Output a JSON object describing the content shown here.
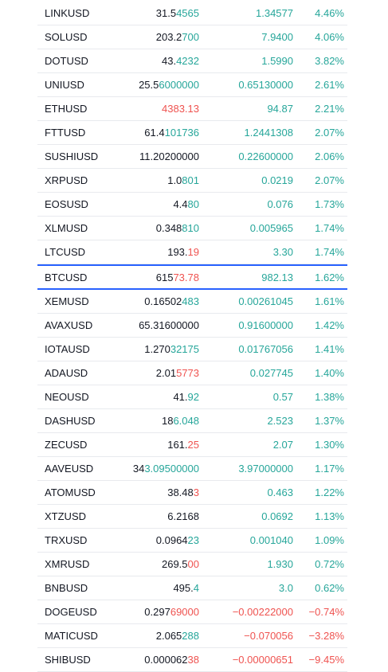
{
  "colors": {
    "up": "#26a69a",
    "down": "#ef5350",
    "text": "#131722",
    "highlight_border": "#2962ff"
  },
  "rows": [
    {
      "symbol": "LINKUSD",
      "last_base": "31.5",
      "last_tail": "4565",
      "last_dir": "up",
      "change": "1.34577",
      "change_dir": "up",
      "percent": "4.46%",
      "highlight": false
    },
    {
      "symbol": "SOLUSD",
      "last_base": "203.2",
      "last_tail": "700",
      "last_dir": "up",
      "change": "7.9400",
      "change_dir": "up",
      "percent": "4.06%",
      "highlight": false
    },
    {
      "symbol": "DOTUSD",
      "last_base": "43.",
      "last_tail": "4232",
      "last_dir": "up",
      "change": "1.5990",
      "change_dir": "up",
      "percent": "3.82%",
      "highlight": false
    },
    {
      "symbol": "UNIUSD",
      "last_base": "25.5",
      "last_tail": "6000000",
      "last_dir": "up",
      "change": "0.65130000",
      "change_dir": "up",
      "percent": "2.61%",
      "highlight": false
    },
    {
      "symbol": "ETHUSD",
      "last_base": "",
      "last_tail": "4383.13",
      "last_dir": "down",
      "change": "94.87",
      "change_dir": "up",
      "percent": "2.21%",
      "highlight": false
    },
    {
      "symbol": "FTTUSD",
      "last_base": "61.4",
      "last_tail": "101736",
      "last_dir": "up",
      "change": "1.2441308",
      "change_dir": "up",
      "percent": "2.07%",
      "highlight": false
    },
    {
      "symbol": "SUSHIUSD",
      "last_base": "11.20200000",
      "last_tail": "",
      "last_dir": "up",
      "change": "0.22600000",
      "change_dir": "up",
      "percent": "2.06%",
      "highlight": false
    },
    {
      "symbol": "XRPUSD",
      "last_base": "1.0",
      "last_tail": "801",
      "last_dir": "up",
      "change": "0.0219",
      "change_dir": "up",
      "percent": "2.07%",
      "highlight": false
    },
    {
      "symbol": "EOSUSD",
      "last_base": "4.4",
      "last_tail": "80",
      "last_dir": "up",
      "change": "0.076",
      "change_dir": "up",
      "percent": "1.73%",
      "highlight": false
    },
    {
      "symbol": "XLMUSD",
      "last_base": "0.348",
      "last_tail": "810",
      "last_dir": "up",
      "change": "0.005965",
      "change_dir": "up",
      "percent": "1.74%",
      "highlight": false
    },
    {
      "symbol": "LTCUSD",
      "last_base": "193.",
      "last_tail": "19",
      "last_dir": "down",
      "change": "3.30",
      "change_dir": "up",
      "percent": "1.74%",
      "highlight": false
    },
    {
      "symbol": "BTCUSD",
      "last_base": "615",
      "last_tail": "73.78",
      "last_dir": "down",
      "change": "982.13",
      "change_dir": "up",
      "percent": "1.62%",
      "highlight": true
    },
    {
      "symbol": "XEMUSD",
      "last_base": "0.16502",
      "last_tail": "483",
      "last_dir": "up",
      "change": "0.00261045",
      "change_dir": "up",
      "percent": "1.61%",
      "highlight": false
    },
    {
      "symbol": "AVAXUSD",
      "last_base": "65.31600000",
      "last_tail": "",
      "last_dir": "up",
      "change": "0.91600000",
      "change_dir": "up",
      "percent": "1.42%",
      "highlight": false
    },
    {
      "symbol": "IOTAUSD",
      "last_base": "1.270",
      "last_tail": "32175",
      "last_dir": "up",
      "change": "0.01767056",
      "change_dir": "up",
      "percent": "1.41%",
      "highlight": false
    },
    {
      "symbol": "ADAUSD",
      "last_base": "2.01",
      "last_tail": "5773",
      "last_dir": "down",
      "change": "0.027745",
      "change_dir": "up",
      "percent": "1.40%",
      "highlight": false
    },
    {
      "symbol": "NEOUSD",
      "last_base": "41.",
      "last_tail": "92",
      "last_dir": "up",
      "change": "0.57",
      "change_dir": "up",
      "percent": "1.38%",
      "highlight": false
    },
    {
      "symbol": "DASHUSD",
      "last_base": "18",
      "last_tail": "6.048",
      "last_dir": "up",
      "change": "2.523",
      "change_dir": "up",
      "percent": "1.37%",
      "highlight": false
    },
    {
      "symbol": "ZECUSD",
      "last_base": "161.",
      "last_tail": "25",
      "last_dir": "down",
      "change": "2.07",
      "change_dir": "up",
      "percent": "1.30%",
      "highlight": false
    },
    {
      "symbol": "AAVEUSD",
      "last_base": "34",
      "last_tail": "3.09500000",
      "last_dir": "up",
      "change": "3.97000000",
      "change_dir": "up",
      "percent": "1.17%",
      "highlight": false
    },
    {
      "symbol": "ATOMUSD",
      "last_base": "38.48",
      "last_tail": "3",
      "last_dir": "down",
      "change": "0.463",
      "change_dir": "up",
      "percent": "1.22%",
      "highlight": false
    },
    {
      "symbol": "XTZUSD",
      "last_base": "6.2168",
      "last_tail": "",
      "last_dir": "up",
      "change": "0.0692",
      "change_dir": "up",
      "percent": "1.13%",
      "highlight": false
    },
    {
      "symbol": "TRXUSD",
      "last_base": "0.0964",
      "last_tail": "23",
      "last_dir": "up",
      "change": "0.001040",
      "change_dir": "up",
      "percent": "1.09%",
      "highlight": false
    },
    {
      "symbol": "XMRUSD",
      "last_base": "269.5",
      "last_tail": "00",
      "last_dir": "down",
      "change": "1.930",
      "change_dir": "up",
      "percent": "0.72%",
      "highlight": false
    },
    {
      "symbol": "BNBUSD",
      "last_base": "495.",
      "last_tail": "4",
      "last_dir": "up",
      "change": "3.0",
      "change_dir": "up",
      "percent": "0.62%",
      "highlight": false
    },
    {
      "symbol": "DOGEUSD",
      "last_base": "0.297",
      "last_tail": "69000",
      "last_dir": "down",
      "change": "−0.00222000",
      "change_dir": "down",
      "percent": "−0.74%",
      "highlight": false
    },
    {
      "symbol": "MATICUSD",
      "last_base": "2.065",
      "last_tail": "288",
      "last_dir": "up",
      "change": "−0.070056",
      "change_dir": "down",
      "percent": "−3.28%",
      "highlight": false
    },
    {
      "symbol": "SHIBUSD",
      "last_base": "0.000062",
      "last_tail": "38",
      "last_dir": "down",
      "change": "−0.00000651",
      "change_dir": "down",
      "percent": "−9.45%",
      "highlight": false
    }
  ]
}
